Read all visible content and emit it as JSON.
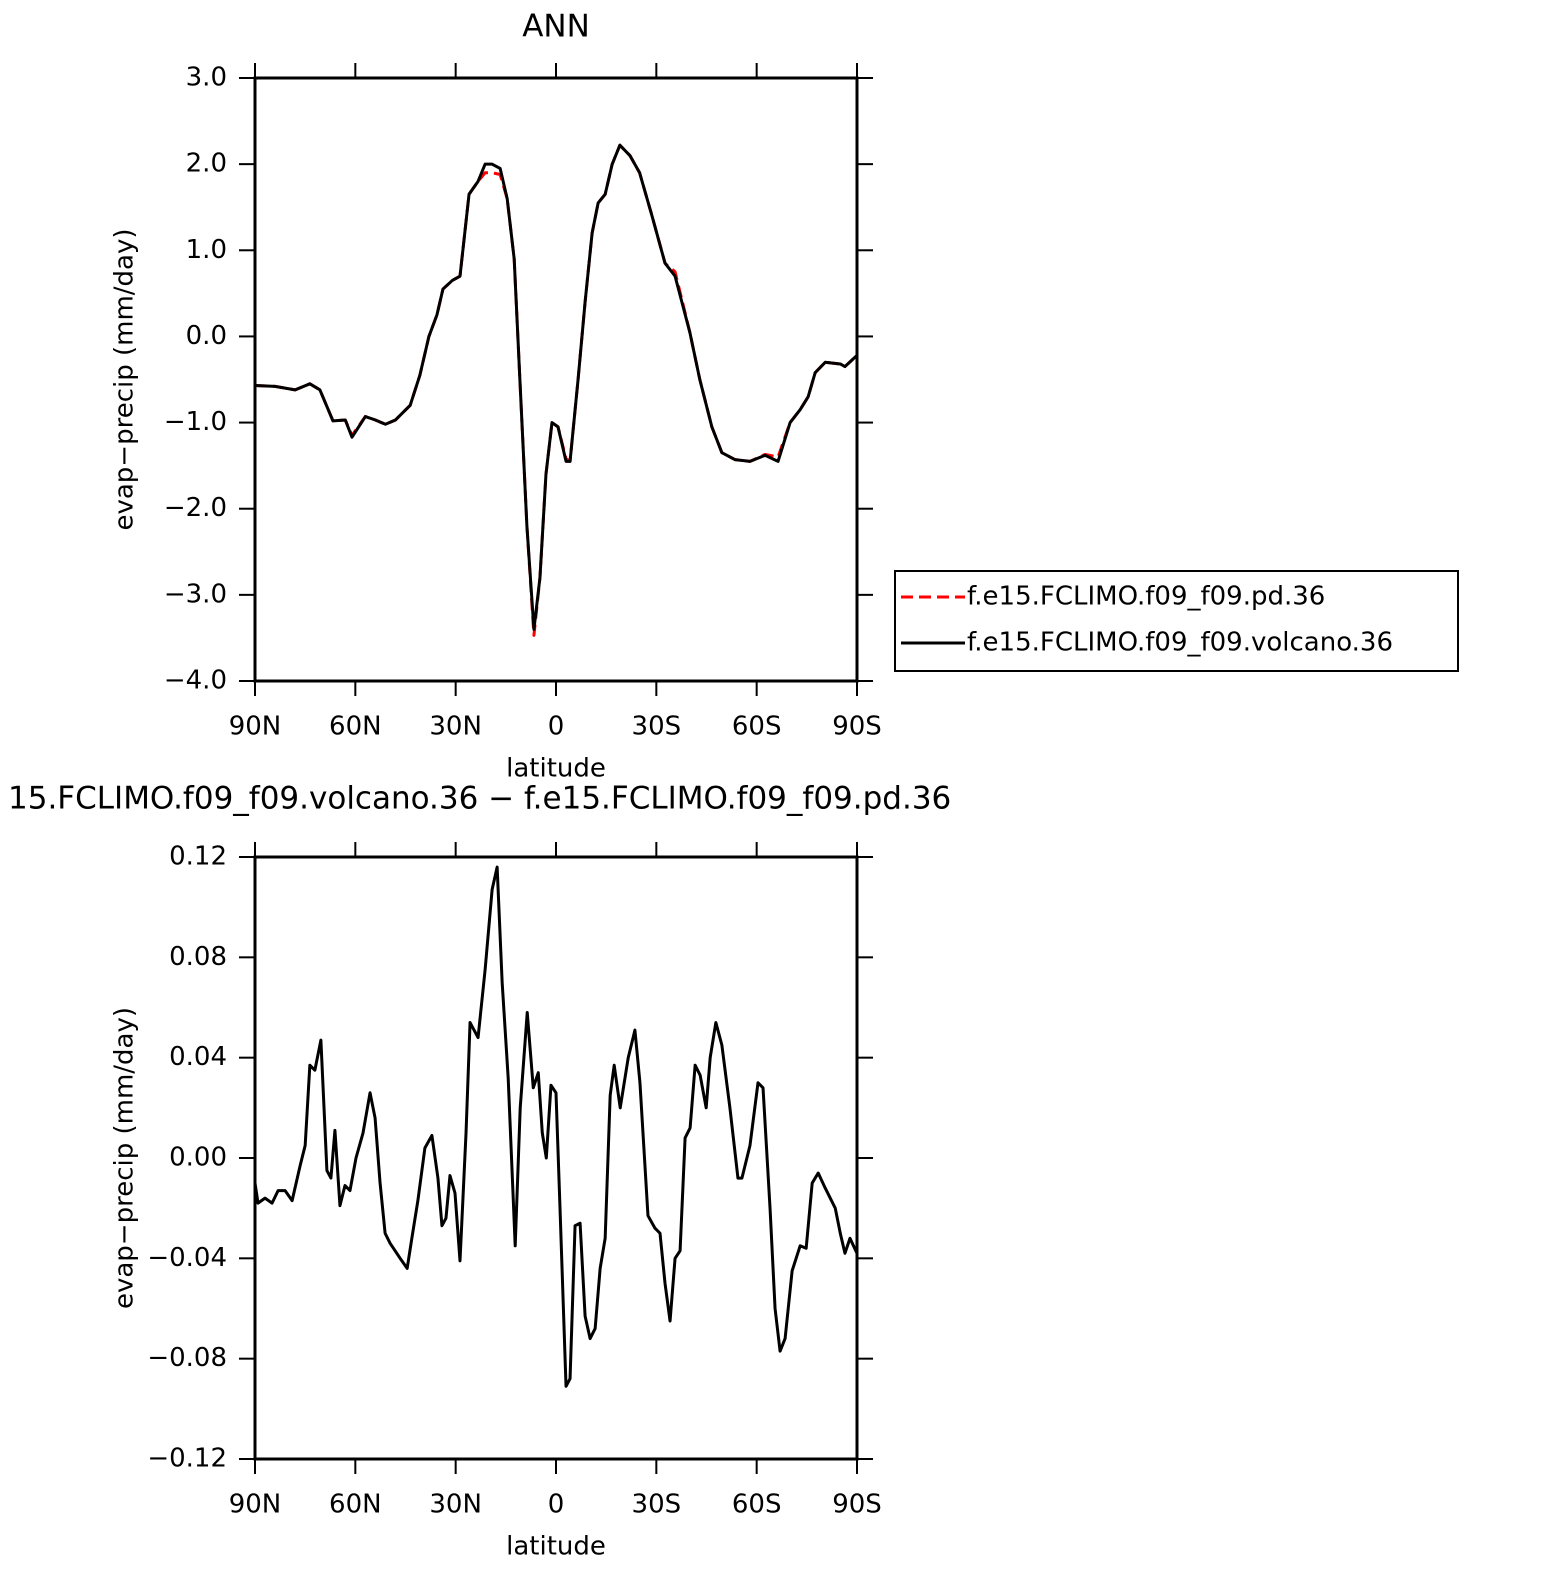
{
  "chart_data": [
    {
      "type": "line",
      "title": "ANN",
      "xlabel": "latitude",
      "ylabel": "evap−precip (mm/day)",
      "x": [
        90,
        84,
        78,
        73.6,
        70.6,
        66.7,
        63,
        61,
        57,
        54,
        51,
        48,
        43.6,
        40.7,
        38,
        35.6,
        33.8,
        31,
        28.7,
        26,
        23.3,
        21.2,
        19.1,
        16.7,
        14.6,
        12.5,
        10.8,
        8.7,
        6.6,
        4.8,
        3,
        1.2,
        -0.6,
        -3,
        -4.2,
        -6.6,
        -8.7,
        -10.8,
        -12.6,
        -14.7,
        -16.8,
        -19.1,
        -22.1,
        -25,
        -28.7,
        -32.6,
        -35.6,
        -40,
        -43,
        -46.6,
        -49.6,
        -53.5,
        -58,
        -62.5,
        -66.4,
        -70,
        -73,
        -75.4,
        -77.5,
        -80.5,
        -85,
        -86.4,
        -90
      ],
      "series": [
        {
          "name": "f.e15.FCLIMO.f09_f09.pd.36",
          "color": "#ff0000",
          "line_style": "dashed",
          "values": [
            -0.57,
            -0.58,
            -0.62,
            -0.55,
            -0.62,
            -0.98,
            -0.97,
            -1.15,
            -0.93,
            -0.97,
            -1.02,
            -0.97,
            -0.8,
            -0.45,
            0.0,
            0.25,
            0.55,
            0.65,
            0.7,
            1.65,
            1.8,
            1.9,
            1.9,
            1.88,
            1.6,
            0.9,
            -0.5,
            -2.2,
            -3.47,
            -2.8,
            -1.6,
            -1.0,
            -1.05,
            -1.42,
            -1.45,
            -0.5,
            0.4,
            1.2,
            1.55,
            1.65,
            2.0,
            2.22,
            2.1,
            1.9,
            1.4,
            0.85,
            0.75,
            0.05,
            -0.5,
            -1.05,
            -1.35,
            -1.43,
            -1.45,
            -1.37,
            -1.4,
            -1.0,
            -0.85,
            -0.7,
            -0.42,
            -0.3,
            -0.32,
            -0.35,
            -0.22
          ]
        },
        {
          "name": "f.e15.FCLIMO.f09_f09.volcano.36",
          "color": "#000000",
          "line_style": "solid",
          "values": [
            -0.57,
            -0.58,
            -0.62,
            -0.55,
            -0.62,
            -0.98,
            -0.97,
            -1.17,
            -0.93,
            -0.97,
            -1.02,
            -0.97,
            -0.8,
            -0.45,
            0.0,
            0.25,
            0.55,
            0.65,
            0.7,
            1.65,
            1.8,
            2.0,
            2.0,
            1.95,
            1.6,
            0.9,
            -0.5,
            -2.2,
            -3.4,
            -2.8,
            -1.6,
            -1.0,
            -1.05,
            -1.45,
            -1.45,
            -0.5,
            0.4,
            1.2,
            1.55,
            1.65,
            2.0,
            2.22,
            2.1,
            1.9,
            1.4,
            0.85,
            0.7,
            0.05,
            -0.5,
            -1.05,
            -1.35,
            -1.43,
            -1.45,
            -1.38,
            -1.45,
            -1.0,
            -0.85,
            -0.7,
            -0.42,
            -0.3,
            -0.32,
            -0.35,
            -0.22
          ]
        }
      ],
      "xlim": [
        90,
        -90
      ],
      "xticks": [
        {
          "value": 90,
          "label": "90N"
        },
        {
          "value": 60,
          "label": "60N"
        },
        {
          "value": 30,
          "label": "30N"
        },
        0,
        {
          "value": -30,
          "label": "30S"
        },
        {
          "value": -60,
          "label": "60S"
        },
        {
          "value": -90,
          "label": "90S"
        }
      ],
      "ylim": [
        -4,
        3
      ],
      "yticks": [
        {
          "value": -4,
          "label": "−4.0"
        },
        {
          "value": -3,
          "label": "−3.0"
        },
        {
          "value": -2,
          "label": "−2.0"
        },
        {
          "value": -1,
          "label": "−1.0"
        },
        {
          "value": 0,
          "label": "0.0"
        },
        {
          "value": 1,
          "label": "1.0"
        },
        {
          "value": 2,
          "label": "2.0"
        },
        {
          "value": 3,
          "label": "3.0"
        }
      ],
      "legend": "right"
    },
    {
      "type": "line",
      "title": "15.FCLIMO.f09_f09.volcano.36 − f.e15.FCLIMO.f09_f09.pd.36",
      "xlabel": "latitude",
      "ylabel": "evap−precip (mm/day)",
      "x": [
        90,
        89.1,
        87,
        84.9,
        83.1,
        81,
        78.9,
        76.5,
        75,
        73.6,
        72.1,
        70.3,
        68.5,
        67.3,
        66.1,
        64.6,
        63.1,
        61.6,
        59.8,
        57.7,
        55.6,
        54.1,
        52.6,
        51.1,
        49.6,
        46.6,
        44.5,
        43.1,
        41.3,
        39.2,
        37.1,
        35.3,
        34.1,
        32.9,
        31.7,
        30.2,
        28.7,
        26.9,
        25.7,
        23.3,
        21.2,
        19.1,
        17.6,
        16.1,
        14.3,
        12.2,
        10.7,
        8.6,
        6.8,
        5.3,
        4.1,
        2.9,
        1.5,
        0,
        -1.2,
        -3,
        -4.2,
        -5.7,
        -7.2,
        -8.7,
        -10.2,
        -11.7,
        -13.2,
        -14.7,
        -16.2,
        -17.4,
        -19.2,
        -21.6,
        -23.6,
        -25.1,
        -27.5,
        -29.6,
        -31.1,
        -32.6,
        -34.1,
        -35.6,
        -37.1,
        -38.6,
        -40.1,
        -41.6,
        -43.1,
        -44.9,
        -46.1,
        -47.8,
        -49.6,
        -52,
        -54.4,
        -55.6,
        -58,
        -60.4,
        -61.9,
        -64,
        -65.5,
        -67,
        -68.5,
        -70.6,
        -73,
        -74.8,
        -76.6,
        -78.4,
        -80.5,
        -83.5,
        -85,
        -86.4,
        -87.9,
        -90
      ],
      "series": [
        {
          "color": "#000000",
          "line_style": "solid",
          "values": [
            -0.01,
            -0.018,
            -0.016,
            -0.018,
            -0.013,
            -0.013,
            -0.017,
            -0.003,
            0.005,
            0.037,
            0.035,
            0.047,
            -0.005,
            -0.008,
            0.011,
            -0.019,
            -0.011,
            -0.013,
            0.0,
            0.01,
            0.026,
            0.016,
            -0.01,
            -0.03,
            -0.034,
            -0.04,
            -0.044,
            -0.032,
            -0.017,
            0.004,
            0.009,
            -0.008,
            -0.027,
            -0.024,
            -0.007,
            -0.014,
            -0.041,
            0.01,
            0.054,
            0.048,
            0.075,
            0.107,
            0.116,
            0.07,
            0.032,
            -0.035,
            0.02,
            0.058,
            0.028,
            0.034,
            0.01,
            0.0,
            0.029,
            0.026,
            -0.02,
            -0.091,
            -0.088,
            -0.027,
            -0.026,
            -0.063,
            -0.072,
            -0.068,
            -0.044,
            -0.032,
            0.025,
            0.037,
            0.02,
            0.04,
            0.051,
            0.03,
            -0.023,
            -0.028,
            -0.03,
            -0.05,
            -0.065,
            -0.04,
            -0.037,
            0.008,
            0.012,
            0.037,
            0.033,
            0.02,
            0.04,
            0.054,
            0.045,
            0.02,
            -0.008,
            -0.008,
            0.005,
            0.03,
            0.028,
            -0.02,
            -0.06,
            -0.077,
            -0.072,
            -0.045,
            -0.035,
            -0.036,
            -0.01,
            -0.006,
            -0.012,
            -0.02,
            -0.03,
            -0.038,
            -0.032,
            -0.038
          ]
        }
      ],
      "xlim": [
        90,
        -90
      ],
      "xticks": [
        {
          "value": 90,
          "label": "90N"
        },
        {
          "value": 60,
          "label": "60N"
        },
        {
          "value": 30,
          "label": "30N"
        },
        0,
        {
          "value": -30,
          "label": "30S"
        },
        {
          "value": -60,
          "label": "60S"
        },
        {
          "value": -90,
          "label": "90S"
        }
      ],
      "ylim": [
        -0.12,
        0.12
      ],
      "yticks": [
        {
          "value": -0.12,
          "label": "−0.12"
        },
        {
          "value": -0.08,
          "label": "−0.08"
        },
        {
          "value": -0.04,
          "label": "−0.04"
        },
        {
          "value": 0,
          "label": "0.00"
        },
        0.04,
        0.08,
        0.12
      ]
    }
  ]
}
